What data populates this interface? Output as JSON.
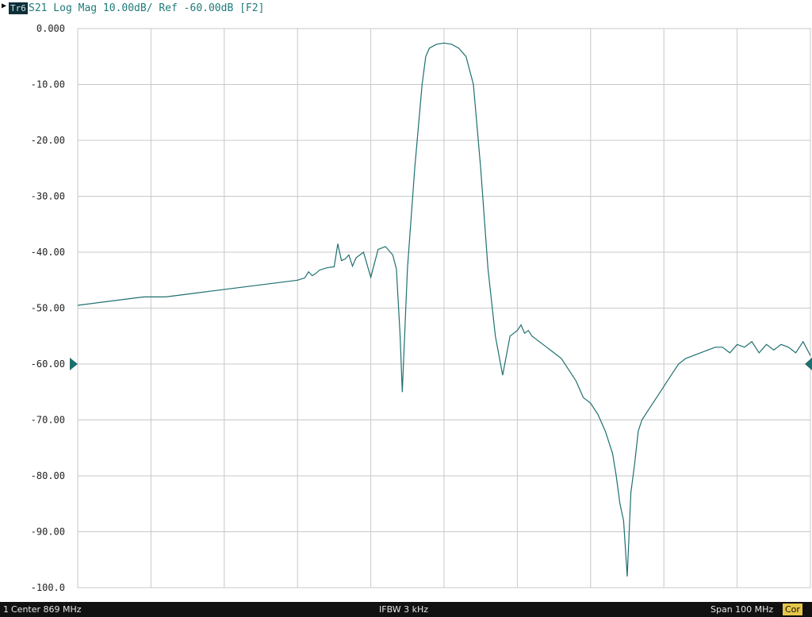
{
  "header": {
    "trace_id": "Tr6",
    "title": "S21 Log Mag 10.00dB/ Ref -60.00dB [F2]"
  },
  "footer": {
    "channel": "1",
    "center": "Center 869 MHz",
    "ifbw": "IFBW 3 kHz",
    "span": "Span 100 MHz",
    "cor_badge": "Cor"
  },
  "colors": {
    "trace": "#1f6f6f",
    "grid": "#c8c8c8",
    "footer_bg": "#111111",
    "cor_badge": "#e6c64a"
  },
  "chart_data": {
    "type": "line",
    "title": "S21 Log Mag 10.00dB/ Ref -60.00dB [F2]",
    "xlabel": "",
    "ylabel": "",
    "x_unit": "MHz",
    "xlim": [
      819,
      919
    ],
    "ylim": [
      -100,
      0
    ],
    "y_ticks": [
      "0.000",
      "-10.00",
      "-20.00",
      "-30.00",
      "-40.00",
      "-50.00",
      "-60.00",
      "-70.00",
      "-80.00",
      "-90.00",
      "-100.0"
    ],
    "reference_level_db": -60,
    "grid": true,
    "series": [
      {
        "x": [
          819,
          822,
          825,
          828,
          831,
          834,
          837,
          840,
          843,
          846,
          849,
          850,
          850.5,
          851,
          851.5,
          852,
          853,
          854,
          854.5,
          855,
          855.5,
          856,
          856.5,
          857,
          858,
          859,
          860,
          861,
          862,
          862.5,
          863,
          863.3,
          864,
          865,
          866,
          866.5,
          867,
          868,
          869,
          870,
          871,
          872,
          873,
          874,
          875,
          876,
          877,
          878,
          879,
          879.5,
          880,
          880.5,
          881,
          882,
          883,
          884,
          885,
          886,
          887,
          888,
          889,
          890,
          891,
          892,
          892.5,
          893,
          893.5,
          894,
          894.5,
          895,
          895.5,
          896,
          897,
          898,
          899,
          900,
          901,
          902,
          903,
          904,
          905,
          906,
          907,
          908,
          909,
          910,
          911,
          912,
          913,
          914,
          915,
          916,
          917,
          918,
          919
        ],
        "y": [
          -49.5,
          -49,
          -48.5,
          -48,
          -48,
          -47.5,
          -47,
          -46.5,
          -46,
          -45.5,
          -45,
          -44.6,
          -43.5,
          -44.2,
          -43.8,
          -43.2,
          -42.8,
          -42.6,
          -38.5,
          -41.5,
          -41.2,
          -40.5,
          -42.5,
          -41,
          -40,
          -44.5,
          -39.5,
          -39,
          -40.5,
          -43,
          -55,
          -65,
          -43,
          -25,
          -10,
          -5,
          -3.5,
          -2.8,
          -2.6,
          -2.8,
          -3.5,
          -5,
          -10,
          -25,
          -43,
          -55,
          -62,
          -55,
          -54,
          -53,
          -54.5,
          -54,
          -55,
          -56,
          -57,
          -58,
          -59,
          -61,
          -63,
          -66,
          -67,
          -69,
          -72,
          -76,
          -80,
          -85,
          -88,
          -98,
          -83,
          -78,
          -72,
          -70,
          -68,
          -66,
          -64,
          -62,
          -60,
          -59,
          -58.5,
          -58,
          -57.5,
          -57,
          -57,
          -58,
          -56.5,
          -57,
          -56,
          -58,
          -56.5,
          -57.5,
          -56.5,
          -57,
          -58,
          -56,
          -58.5
        ]
      }
    ]
  }
}
